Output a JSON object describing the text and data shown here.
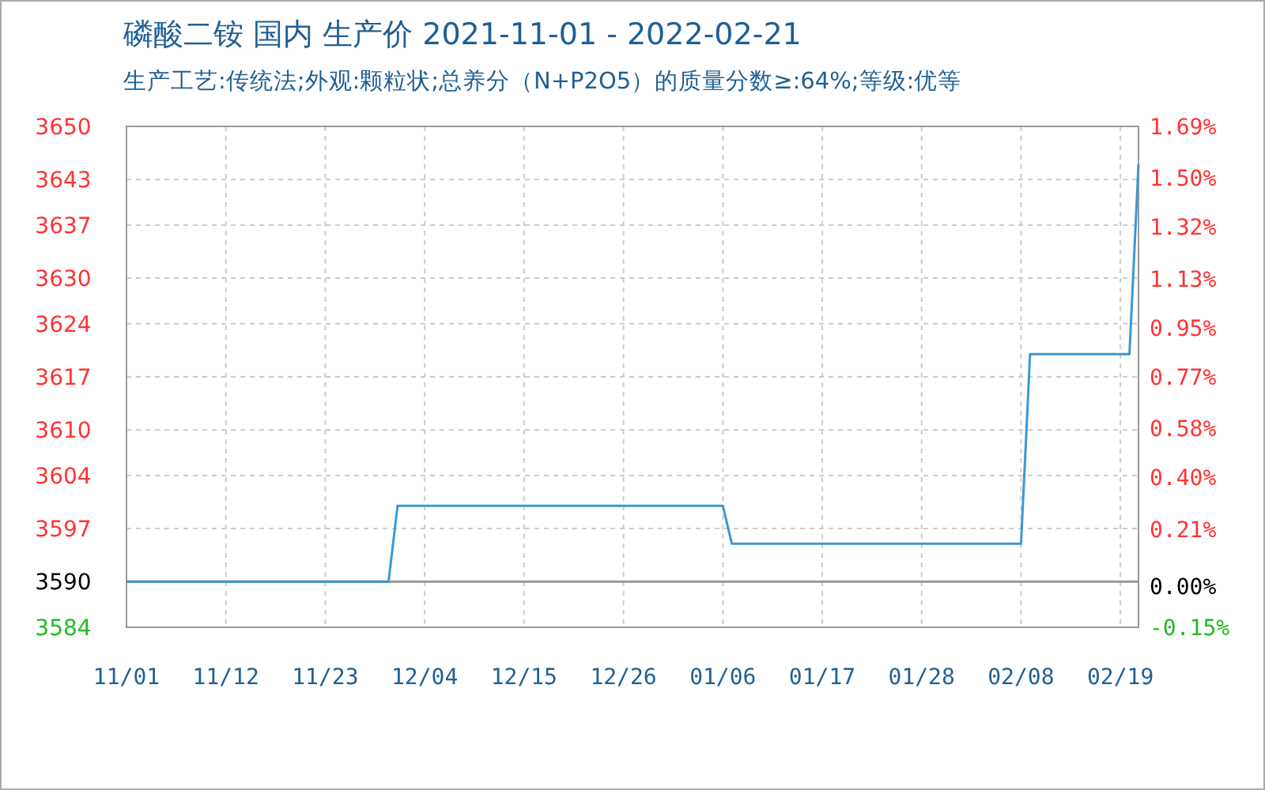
{
  "chart_data": {
    "type": "line",
    "title": "磷酸二铵 国内 生产价 2021-11-01 - 2022-02-21",
    "subtitle": "生产工艺:传统法;外观:颗粒状;总养分（N+P2O5）的质量分数≥:64%;等级:优等",
    "x": [
      "2021-11-01",
      "2021-11-30",
      "2021-12-01",
      "2022-01-06",
      "2022-01-07",
      "2022-02-08",
      "2022-02-09",
      "2022-02-20",
      "2022-02-21"
    ],
    "series": [
      {
        "color": "#3d97d3",
        "values": [
          3590,
          3590,
          3600,
          3600,
          3595,
          3595,
          3620,
          3620,
          3645
        ]
      }
    ],
    "xlim": [
      "2021-11-01",
      "2022-02-21"
    ],
    "xticks": [
      {
        "value": "2021-11-01",
        "label": "11/01"
      },
      {
        "value": "2021-11-12",
        "label": "11/12"
      },
      {
        "value": "2021-11-23",
        "label": "11/23"
      },
      {
        "value": "2021-12-04",
        "label": "12/04"
      },
      {
        "value": "2021-12-15",
        "label": "12/15"
      },
      {
        "value": "2021-12-26",
        "label": "12/26"
      },
      {
        "value": "2022-01-06",
        "label": "01/06"
      },
      {
        "value": "2022-01-17",
        "label": "01/17"
      },
      {
        "value": "2022-01-28",
        "label": "01/28"
      },
      {
        "value": "2022-02-08",
        "label": "02/08"
      },
      {
        "value": "2022-02-19",
        "label": "02/19"
      }
    ],
    "ylim": [
      3584,
      3650
    ],
    "yticks": [
      3584,
      3590,
      3597,
      3604,
      3610,
      3617,
      3624,
      3630,
      3637,
      3643,
      3650
    ],
    "y2lim": [
      -0.15,
      1.69
    ],
    "y2ticks": [
      {
        "value": -0.15,
        "label": "-0.15%"
      },
      {
        "value": 0,
        "label": "0.00%"
      },
      {
        "value": 0.21,
        "label": "0.21%"
      },
      {
        "value": 0.4,
        "label": "0.40%"
      },
      {
        "value": 0.58,
        "label": "0.58%"
      },
      {
        "value": 0.77,
        "label": "0.77%"
      },
      {
        "value": 0.95,
        "label": "0.95%"
      },
      {
        "value": 1.13,
        "label": "1.13%"
      },
      {
        "value": 1.32,
        "label": "1.32%"
      },
      {
        "value": 1.5,
        "label": "1.50%"
      },
      {
        "value": 1.69,
        "label": "1.69%"
      }
    ],
    "ref_lines": [
      {
        "axis": "y",
        "value": 3590,
        "color": "#999999"
      }
    ],
    "grid": true
  }
}
